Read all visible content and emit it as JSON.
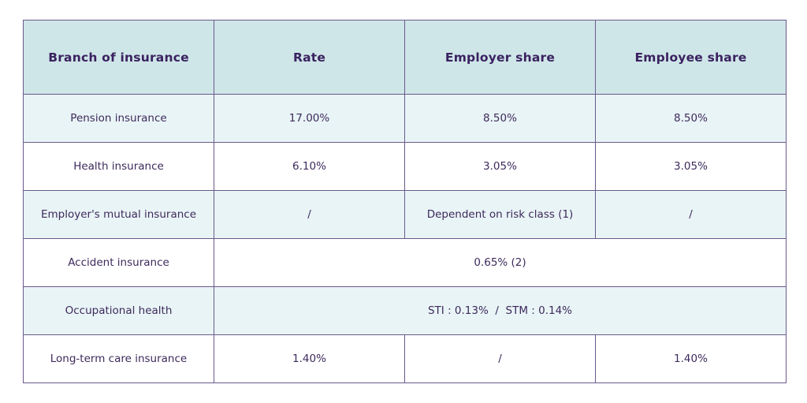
{
  "table": {
    "headers": [
      "Branch of insurance",
      "Rate",
      "Employer share",
      "Employee share"
    ],
    "rows": [
      {
        "branch": "Pension insurance",
        "rate": "17.00%",
        "employer": "8.50%",
        "employee": "8.50%"
      },
      {
        "branch": "Health insurance",
        "rate": "6.10%",
        "employer": "3.05%",
        "employee": "3.05%"
      },
      {
        "branch": "Employer's mutual insurance",
        "rate": "/",
        "employer": "Dependent on risk class (1)",
        "employee": "/"
      },
      {
        "branch": "Accident insurance",
        "combined": "0.65% (2)"
      },
      {
        "branch": "Occupational health",
        "combined": "STI : 0.13%  /  STM : 0.14%"
      },
      {
        "branch": "Long-term care insurance",
        "rate": "1.40%",
        "employer": "/",
        "employee": "1.40%"
      }
    ]
  },
  "colors": {
    "header_bg": "#cfe6e8",
    "shaded_row_bg": "#e9f4f6",
    "border": "#6a5a8c",
    "text": "#3d2a5c"
  }
}
